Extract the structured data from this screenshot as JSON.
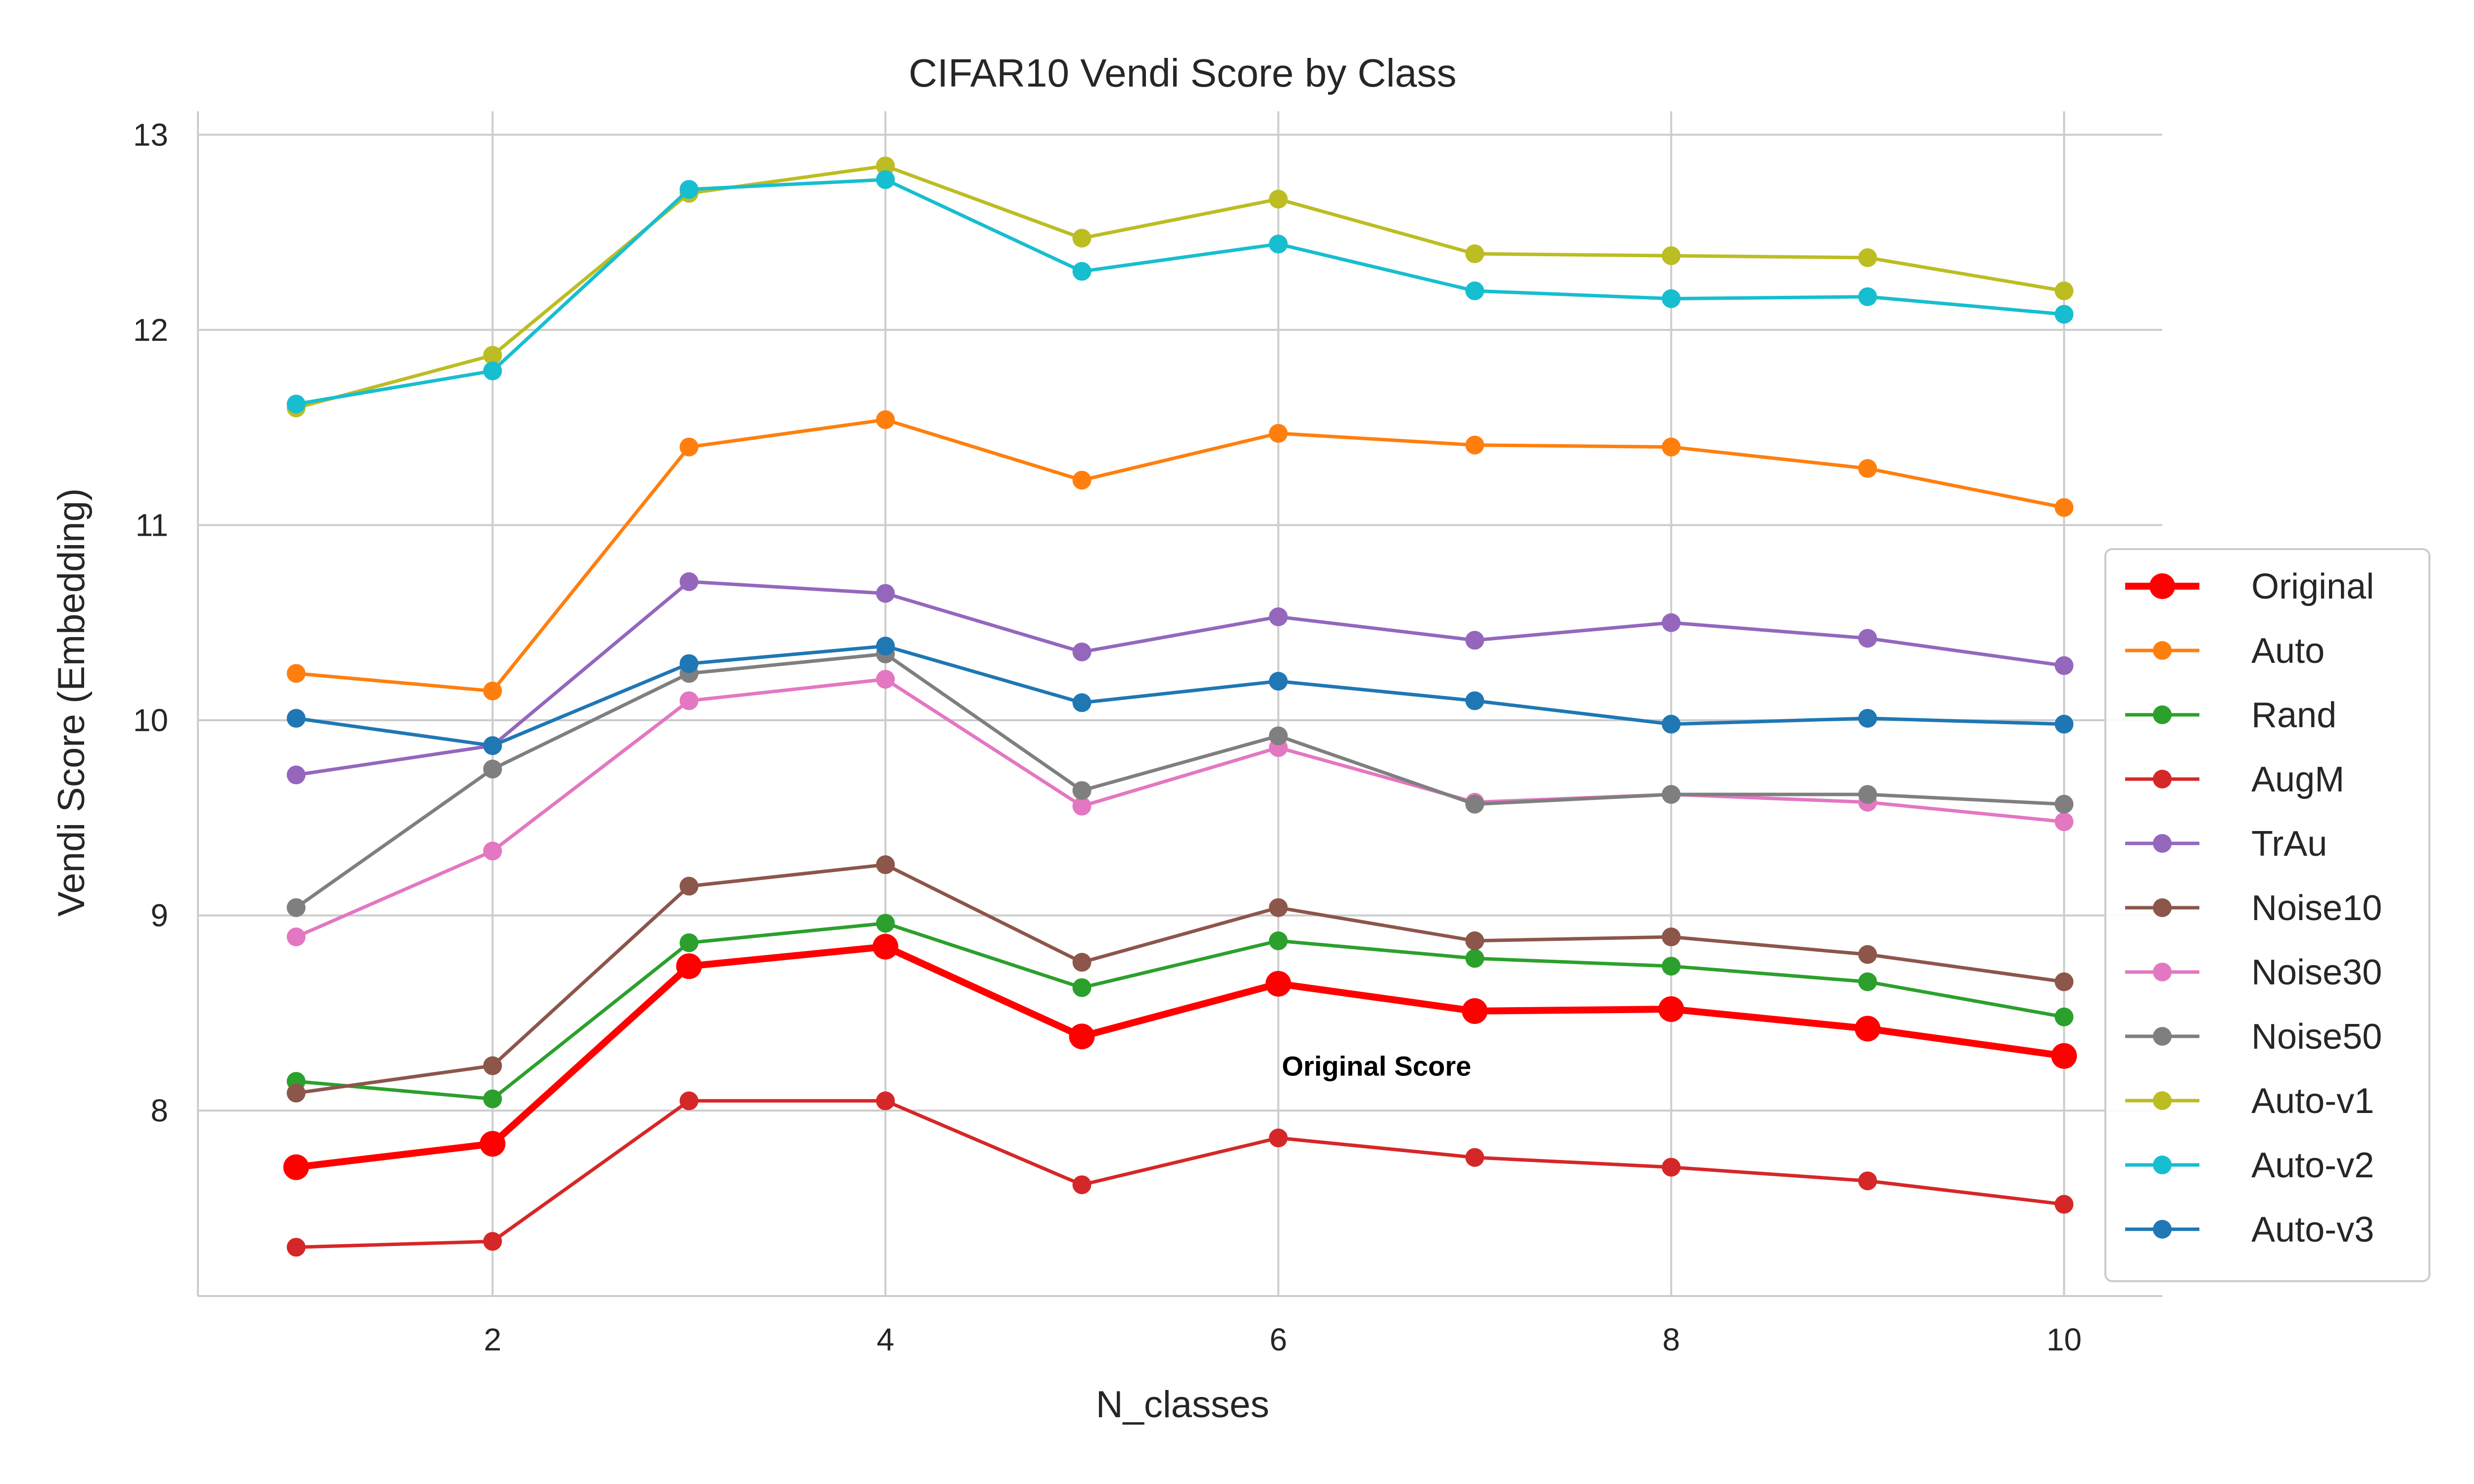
{
  "chart_data": {
    "type": "line",
    "title": "CIFAR10 Vendi Score by Class",
    "xlabel": "N_classes",
    "ylabel": "Vendi Score (Embedding)",
    "xlim": [
      0.5,
      10.5
    ],
    "ylim": [
      7.05,
      13.12
    ],
    "xticks": [
      2,
      4,
      6,
      8,
      10
    ],
    "yticks": [
      8,
      9,
      10,
      11,
      12,
      13
    ],
    "grid": true,
    "legend_position": "right",
    "x": [
      1,
      2,
      3,
      4,
      5,
      6,
      7,
      8,
      9,
      10
    ],
    "series": [
      {
        "name": "Original",
        "color": "#ff0000",
        "bold": true,
        "values": [
          7.71,
          7.83,
          8.74,
          8.84,
          8.38,
          8.65,
          8.51,
          8.52,
          8.42,
          8.28
        ]
      },
      {
        "name": "Auto",
        "color": "#ff7f0e",
        "bold": false,
        "values": [
          10.24,
          10.15,
          11.4,
          11.54,
          11.23,
          11.47,
          11.41,
          11.4,
          11.29,
          11.09
        ]
      },
      {
        "name": "Rand",
        "color": "#2ca02c",
        "bold": false,
        "values": [
          8.15,
          8.06,
          8.86,
          8.96,
          8.63,
          8.87,
          8.78,
          8.74,
          8.66,
          8.48
        ]
      },
      {
        "name": "AugM",
        "color": "#d62728",
        "bold": false,
        "values": [
          7.3,
          7.33,
          8.05,
          8.05,
          7.62,
          7.86,
          7.76,
          7.71,
          7.64,
          7.52
        ]
      },
      {
        "name": "TrAu",
        "color": "#9467bd",
        "bold": false,
        "values": [
          9.72,
          9.87,
          10.71,
          10.65,
          10.35,
          10.53,
          10.41,
          10.5,
          10.42,
          10.28
        ]
      },
      {
        "name": "Noise10",
        "color": "#8c564b",
        "bold": false,
        "values": [
          8.09,
          8.23,
          9.15,
          9.26,
          8.76,
          9.04,
          8.87,
          8.89,
          8.8,
          8.66
        ]
      },
      {
        "name": "Noise30",
        "color": "#e377c2",
        "bold": false,
        "values": [
          8.89,
          9.33,
          10.1,
          10.21,
          9.56,
          9.86,
          9.58,
          9.62,
          9.58,
          9.48
        ]
      },
      {
        "name": "Noise50",
        "color": "#7f7f7f",
        "bold": false,
        "values": [
          9.04,
          9.75,
          10.24,
          10.34,
          9.64,
          9.92,
          9.57,
          9.62,
          9.62,
          9.57
        ]
      },
      {
        "name": "Auto-v1",
        "color": "#bcbd22",
        "bold": false,
        "values": [
          11.6,
          11.87,
          12.7,
          12.84,
          12.47,
          12.67,
          12.39,
          12.38,
          12.37,
          12.2
        ]
      },
      {
        "name": "Auto-v2",
        "color": "#17becf",
        "bold": false,
        "values": [
          11.62,
          11.79,
          12.72,
          12.77,
          12.3,
          12.44,
          12.2,
          12.16,
          12.17,
          12.08
        ]
      },
      {
        "name": "Auto-v3",
        "color": "#1f77b4",
        "bold": false,
        "values": [
          10.01,
          9.87,
          10.29,
          10.38,
          10.09,
          10.2,
          10.1,
          9.98,
          10.01,
          9.98
        ]
      }
    ],
    "annotations": [
      {
        "text": "Original Score",
        "x": 6.5,
        "y": 8.23
      }
    ]
  }
}
